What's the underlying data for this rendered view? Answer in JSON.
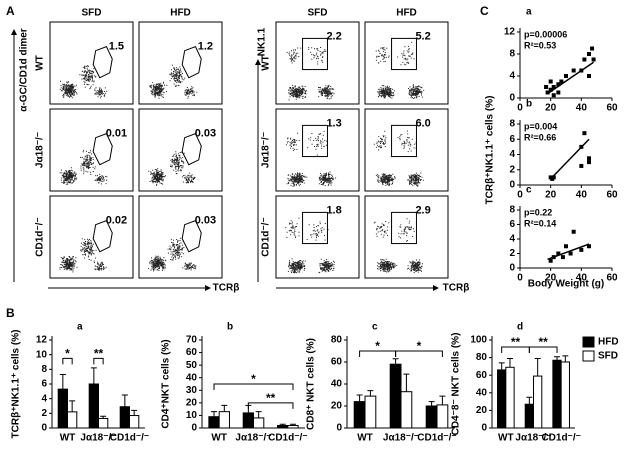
{
  "figure": {
    "panel_labels": [
      "A",
      "B",
      "C"
    ],
    "dimer": {
      "columns": [
        "SFD",
        "HFD"
      ],
      "rows": [
        "WT",
        "Jα18⁻/⁻",
        "CD1d⁻/⁻"
      ],
      "y_label": "α-GC/CD1d dimer",
      "x_label": "TCRβ",
      "values": [
        [
          "1.5",
          "1.2"
        ],
        [
          "0.01",
          "0.03"
        ],
        [
          "0.02",
          "0.03"
        ]
      ]
    },
    "nk": {
      "columns": [
        "SFD",
        "HFD"
      ],
      "rows": [
        "WT",
        "Jα18⁻/⁻",
        "CD1d⁻/⁻"
      ],
      "y_label": "NK1.1",
      "x_label": "TCRβ",
      "values": [
        [
          "2.2",
          "5.2"
        ],
        [
          "1.3",
          "6.0"
        ],
        [
          "1.8",
          "2.9"
        ]
      ]
    },
    "scatter_y_label": "TCRβ⁺NK1.1⁺ cells (%)",
    "scatter_x_label": "Body Weight (g)"
  },
  "chart_data": [
    {
      "type": "scatter",
      "panel": "a",
      "p": "p=0.00006",
      "r2": "R²=0.53",
      "xlim": [
        0,
        60
      ],
      "xticks": [
        0,
        20,
        40,
        60
      ],
      "ylim": [
        0,
        12
      ],
      "yticks": [
        0,
        4,
        8,
        12
      ],
      "x": [
        17,
        18,
        20,
        20,
        22,
        22,
        25,
        25,
        27,
        30,
        35,
        40,
        42,
        45,
        45,
        47,
        48
      ],
      "values": [
        2,
        1,
        3,
        1.5,
        2,
        0.5,
        2.5,
        1,
        3,
        4,
        5,
        5,
        7,
        8,
        4,
        9,
        7
      ],
      "trendline": {
        "x": [
          18,
          48
        ],
        "values": [
          0.8,
          6.5
        ]
      }
    },
    {
      "type": "scatter",
      "panel": "b",
      "p": "p=0.004",
      "r2": "R²=0.66",
      "xlim": [
        0,
        60
      ],
      "xticks": [
        0,
        20,
        40,
        60
      ],
      "ylim": [
        0,
        8
      ],
      "yticks": [
        0,
        2,
        4,
        6,
        8
      ],
      "x": [
        20,
        21,
        22,
        40,
        42,
        45,
        45,
        40
      ],
      "values": [
        1,
        0.8,
        1,
        5,
        6.8,
        3,
        3.5,
        2.5
      ],
      "trendline": {
        "x": [
          20,
          45
        ],
        "values": [
          0.8,
          6
        ]
      }
    },
    {
      "type": "scatter",
      "panel": "c",
      "p": "p=0.22",
      "r2": "R²=0.14",
      "xlim": [
        0,
        60
      ],
      "xticks": [
        0,
        20,
        40,
        60
      ],
      "ylim": [
        0,
        8
      ],
      "yticks": [
        0,
        2,
        4,
        6,
        8
      ],
      "x": [
        20,
        22,
        25,
        28,
        30,
        33,
        35,
        40,
        45
      ],
      "values": [
        1,
        1.5,
        2,
        1.5,
        3,
        2,
        5,
        2.5,
        3
      ],
      "trendline": {
        "x": [
          18,
          45
        ],
        "values": [
          1.2,
          3.3
        ]
      }
    },
    {
      "type": "bar",
      "panel": "a",
      "y_label": "TCRβ⁺NK1.1⁺ cells (%)",
      "categories": [
        "WT",
        "Jα18⁻/⁻",
        "CD1d⁻/⁻"
      ],
      "ylim": [
        0,
        12
      ],
      "yticks": [
        0,
        2,
        4,
        6,
        8,
        10,
        12
      ],
      "annotations": [
        "*",
        "**"
      ],
      "series": [
        {
          "color": "#000000",
          "values": [
            5.3,
            6.0,
            2.9
          ],
          "errors": [
            2,
            2.2,
            1.6
          ]
        },
        {
          "color": "#ffffff",
          "values": [
            2.2,
            1.3,
            1.7
          ],
          "errors": [
            1.5,
            0.3,
            0.7
          ]
        }
      ]
    },
    {
      "type": "bar",
      "panel": "b",
      "y_label": "CD4⁺NKT cells (%)",
      "categories": [
        "WT",
        "Jα18⁻/⁻",
        "CD1d⁻/⁻"
      ],
      "ylim": [
        0,
        70
      ],
      "yticks": [
        0,
        10,
        20,
        30,
        40,
        50,
        60,
        70
      ],
      "annotations": [
        "*",
        "**"
      ],
      "series": [
        {
          "color": "#000000",
          "values": [
            9,
            12,
            2
          ],
          "errors": [
            4,
            6,
            1
          ]
        },
        {
          "color": "#ffffff",
          "values": [
            13,
            8,
            2
          ],
          "errors": [
            5,
            5,
            1
          ]
        }
      ]
    },
    {
      "type": "bar",
      "panel": "c",
      "y_label": "CD8⁺ NKT cells (%)",
      "categories": [
        "WT",
        "Jα18⁻/⁻",
        "CD1d⁻/⁻"
      ],
      "ylim": [
        0,
        80
      ],
      "yticks": [
        0,
        20,
        40,
        60,
        80
      ],
      "annotations": [
        "*",
        "*"
      ],
      "series": [
        {
          "color": "#000000",
          "values": [
            24,
            58,
            20
          ],
          "errors": [
            6,
            5,
            4
          ]
        },
        {
          "color": "#ffffff",
          "values": [
            29,
            33,
            21
          ],
          "errors": [
            5,
            16,
            8
          ]
        }
      ]
    },
    {
      "type": "bar",
      "panel": "d",
      "y_label": "CD4⁻8⁻ NKT cells (%)",
      "categories": [
        "WT",
        "Jα18⁻/⁻",
        "CD1d⁻/⁻"
      ],
      "ylim": [
        0,
        100
      ],
      "yticks": [
        0,
        20,
        40,
        60,
        80,
        100
      ],
      "annotations": [
        "**",
        "**"
      ],
      "series": [
        {
          "name": "HFD",
          "color": "#000000",
          "values": [
            66,
            27,
            77
          ],
          "errors": [
            8,
            8,
            4
          ]
        },
        {
          "name": "SFD",
          "color": "#ffffff",
          "values": [
            69,
            59,
            75
          ],
          "errors": [
            10,
            20,
            7
          ]
        }
      ]
    }
  ]
}
